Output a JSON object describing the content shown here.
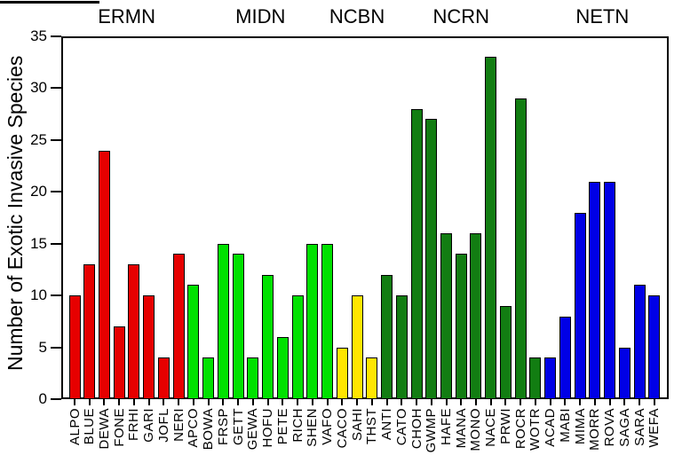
{
  "chart_data": {
    "type": "bar",
    "title": "",
    "xlabel": "",
    "ylabel": "Number of Exotic Invasive Species",
    "ylim": [
      0,
      35
    ],
    "y_ticks": [
      0,
      5,
      10,
      15,
      20,
      25,
      30,
      35
    ],
    "grid": false,
    "legend": false,
    "groups": [
      {
        "name": "ERMN",
        "color": "#E60000",
        "parks": [
          {
            "code": "ALPO",
            "value": 10
          },
          {
            "code": "BLUE",
            "value": 13
          },
          {
            "code": "DEWA",
            "value": 24
          },
          {
            "code": "FONE",
            "value": 7
          },
          {
            "code": "FRHI",
            "value": 13
          },
          {
            "code": "GARI",
            "value": 10
          },
          {
            "code": "JOFL",
            "value": 4
          },
          {
            "code": "NERI",
            "value": 14
          }
        ]
      },
      {
        "name": "MIDN",
        "color": "#00E100",
        "parks": [
          {
            "code": "APCO",
            "value": 11
          },
          {
            "code": "BOWA",
            "value": 4
          },
          {
            "code": "FRSP",
            "value": 15
          },
          {
            "code": "GETT",
            "value": 14
          },
          {
            "code": "GEWA",
            "value": 4
          },
          {
            "code": "HOFU",
            "value": 12
          },
          {
            "code": "PETE",
            "value": 6
          },
          {
            "code": "RICH",
            "value": 10
          },
          {
            "code": "SHEN",
            "value": 15
          },
          {
            "code": "VAFO",
            "value": 15
          }
        ]
      },
      {
        "name": "NCBN",
        "color": "#FFE600",
        "parks": [
          {
            "code": "CACO",
            "value": 5
          },
          {
            "code": "SAHI",
            "value": 10
          },
          {
            "code": "THST",
            "value": 4
          }
        ]
      },
      {
        "name": "NCRN",
        "color": "#127D12",
        "parks": [
          {
            "code": "ANTI",
            "value": 12
          },
          {
            "code": "CATO",
            "value": 10
          },
          {
            "code": "CHOH",
            "value": 28
          },
          {
            "code": "GWMP",
            "value": 27
          },
          {
            "code": "HAFE",
            "value": 16
          },
          {
            "code": "MANA",
            "value": 14
          },
          {
            "code": "MONO",
            "value": 16
          },
          {
            "code": "NACE",
            "value": 33
          },
          {
            "code": "PRWI",
            "value": 9
          },
          {
            "code": "ROCR",
            "value": 29
          },
          {
            "code": "WOTR",
            "value": 4
          }
        ]
      },
      {
        "name": "NETN",
        "color": "#0000E6",
        "parks": [
          {
            "code": "ACAD",
            "value": 4
          },
          {
            "code": "MABI",
            "value": 8
          },
          {
            "code": "MIMA",
            "value": 18
          },
          {
            "code": "MORR",
            "value": 21
          },
          {
            "code": "ROVA",
            "value": 21
          },
          {
            "code": "SAGA",
            "value": 5
          },
          {
            "code": "SARA",
            "value": 11
          },
          {
            "code": "WEFA",
            "value": 10
          }
        ]
      }
    ]
  }
}
